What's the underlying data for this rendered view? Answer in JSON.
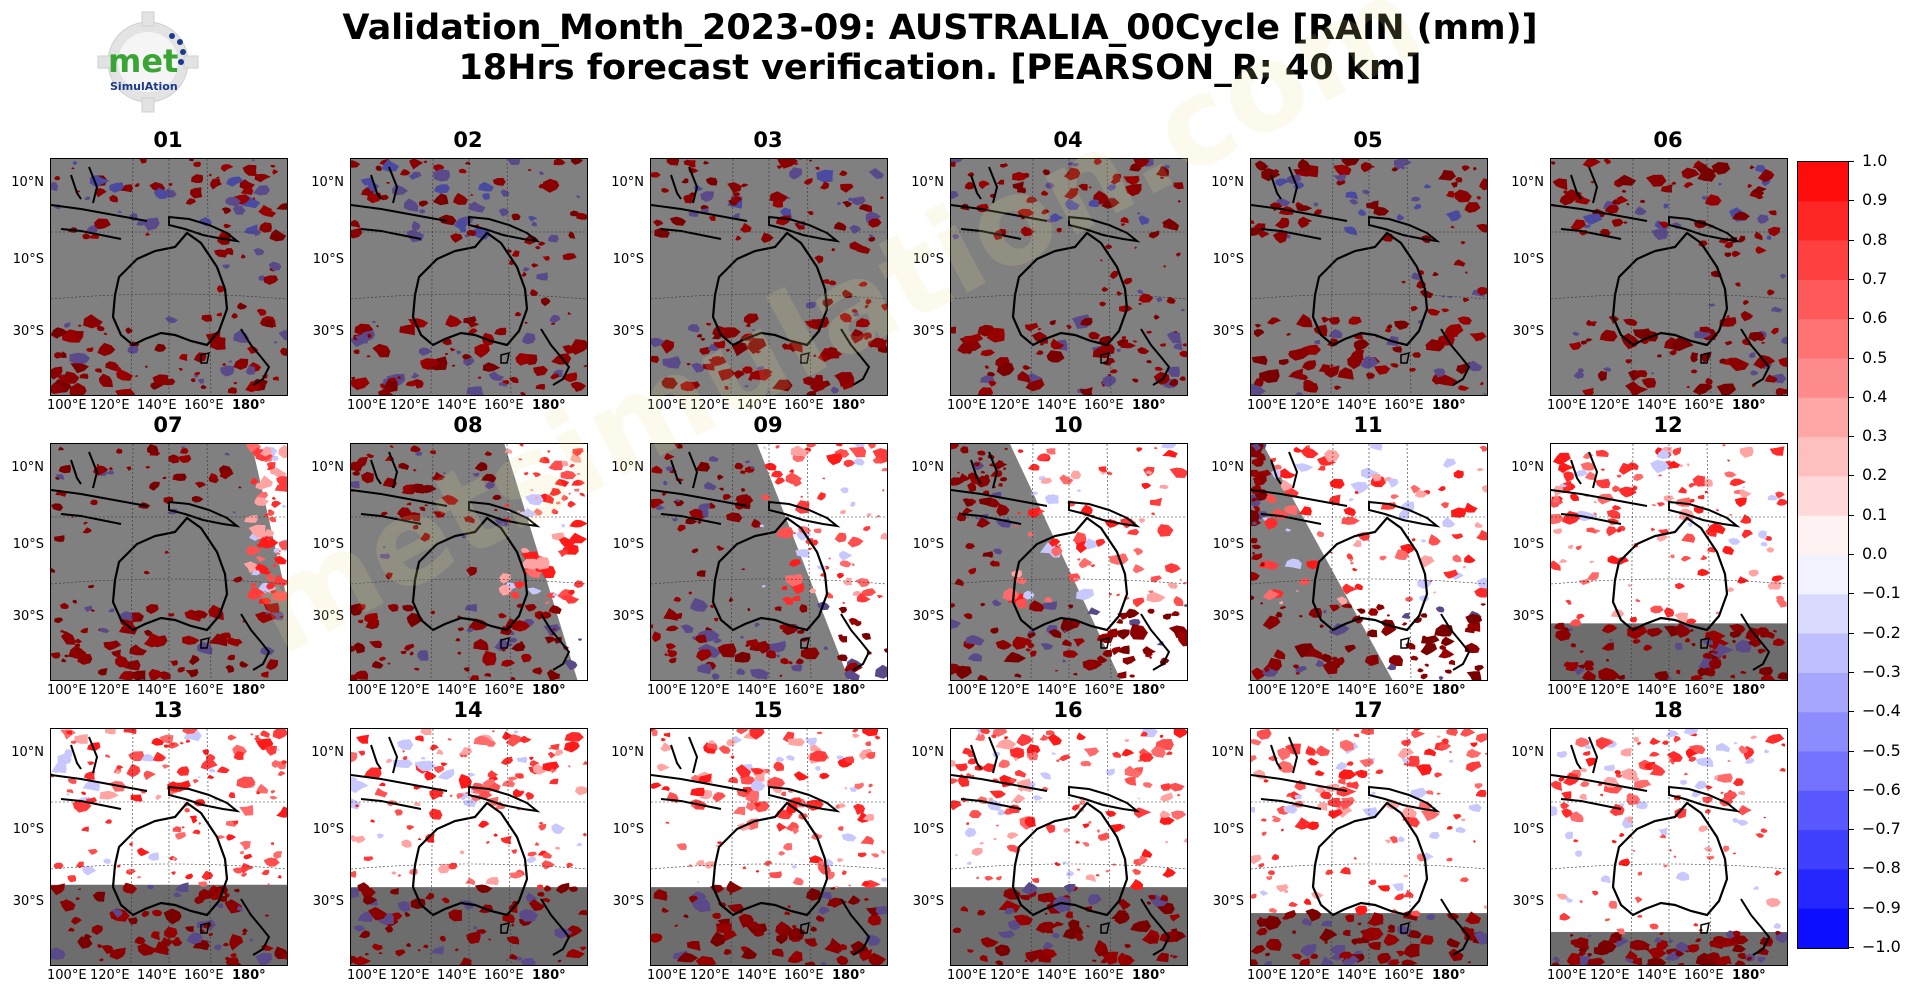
{
  "title": {
    "line1": "Validation_Month_2023-09: AUSTRALIA_00Cycle [RAIN (mm)]",
    "line2": "18Hrs forecast verification.  [PEARSON_R; 40 km]"
  },
  "logo": {
    "icon": "gear-logo-icon",
    "text_main": "met",
    "text_sub": "SimulAtion",
    "accent": "#3aa535",
    "navy": "#1b3a8c"
  },
  "watermark": "metsimulation.com",
  "colors": {
    "land_gray": "#808080",
    "dark_red": "#8b0000",
    "bright_red": "#ff1a1a",
    "blue": "#0000ff"
  },
  "map_axes": {
    "lat_labels": [
      "10°N",
      "10°S",
      "30°S"
    ],
    "lon_labels": [
      "100°E",
      "120°E",
      "140°E",
      "160°E",
      "180°"
    ]
  },
  "panels": [
    {
      "label": "01",
      "regime": "gray"
    },
    {
      "label": "02",
      "regime": "gray"
    },
    {
      "label": "03",
      "regime": "gray"
    },
    {
      "label": "04",
      "regime": "gray"
    },
    {
      "label": "05",
      "regime": "gray"
    },
    {
      "label": "06",
      "regime": "gray"
    },
    {
      "label": "07",
      "regime": "mixed",
      "wedge": 0.15
    },
    {
      "label": "08",
      "regime": "mixed",
      "wedge": 0.35
    },
    {
      "label": "09",
      "regime": "mixed",
      "wedge": 0.55
    },
    {
      "label": "10",
      "regime": "mixed",
      "wedge": 0.75
    },
    {
      "label": "11",
      "regime": "mixed",
      "wedge": 0.95
    },
    {
      "label": "12",
      "regime": "bright",
      "band": 0.24
    },
    {
      "label": "13",
      "regime": "bright",
      "band": 0.34
    },
    {
      "label": "14",
      "regime": "bright",
      "band": 0.33
    },
    {
      "label": "15",
      "regime": "bright",
      "band": 0.33
    },
    {
      "label": "16",
      "regime": "bright",
      "band": 0.33
    },
    {
      "label": "17",
      "regime": "bright",
      "band": 0.22
    },
    {
      "label": "18",
      "regime": "bright",
      "band": 0.14
    }
  ],
  "colorbar": {
    "vmin": -1.0,
    "vmax": 1.0,
    "step": 0.1,
    "ticks": [
      "1.0",
      "0.9",
      "0.8",
      "0.7",
      "0.6",
      "0.5",
      "0.4",
      "0.3",
      "0.2",
      "0.1",
      "0.0",
      "−0.1",
      "−0.2",
      "−0.3",
      "−0.4",
      "−0.5",
      "−0.6",
      "−0.7",
      "−0.8",
      "−0.9",
      "−1.0"
    ],
    "low_color": "#0000ff",
    "high_color": "#ff0000"
  }
}
